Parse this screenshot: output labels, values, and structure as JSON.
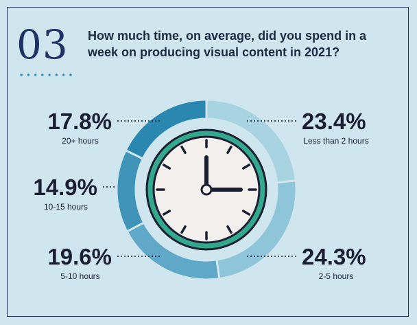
{
  "question_number": "03",
  "question": "How much time, on average, did you spend in a week on producing visual content in 2021?",
  "colors": {
    "background": "#cfe6ee",
    "border": "#213158",
    "ring_segments": [
      "#a8d4e2",
      "#8fc5d8",
      "#5fa8c8",
      "#3f94b8",
      "#2a88b0"
    ],
    "clock_ring": "#34a88c",
    "clock_face": "#f2efec"
  },
  "chart_data": {
    "type": "pie",
    "title": "How much time, on average, did you spend in a week on producing visual content in 2021?",
    "categories": [
      "Less than 2 hours",
      "2-5 hours",
      "5-10 hours",
      "10-15 hours",
      "20+ hours"
    ],
    "values": [
      23.4,
      24.3,
      19.6,
      14.9,
      17.8
    ],
    "labels": [
      "23.4%",
      "24.3%",
      "19.6%",
      "14.9%",
      "17.8%"
    ],
    "unit": "%"
  }
}
